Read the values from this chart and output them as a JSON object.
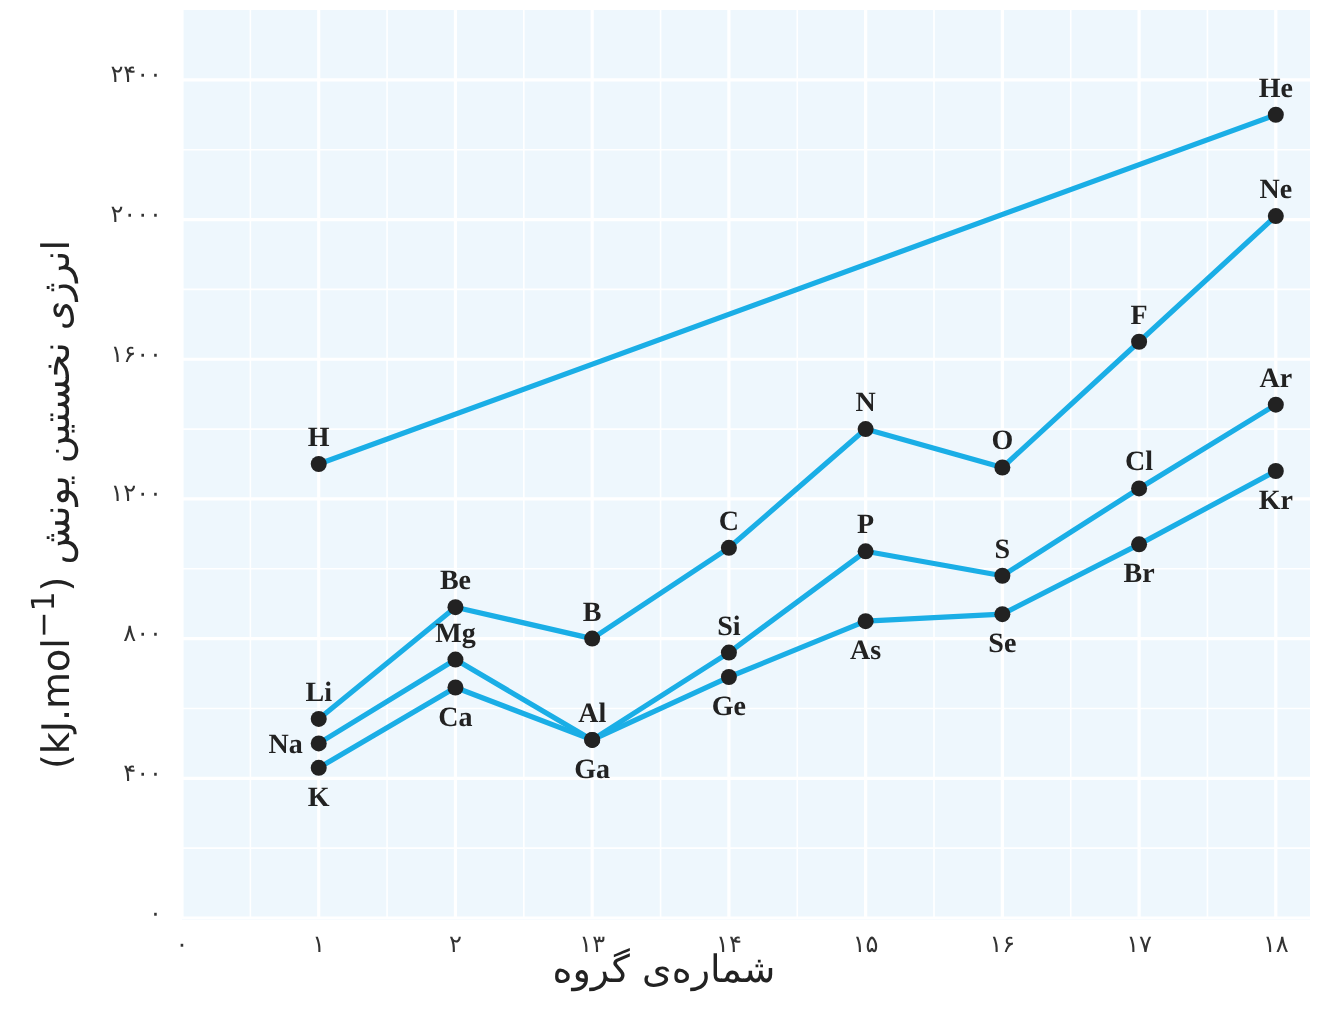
{
  "chart_data": {
    "type": "line",
    "xlabel": "شماره‌ی گروه",
    "ylabel": "انرژی نخستین یونش (kJ.mol$^{−1}$)",
    "categories": [
      "۰",
      "۱",
      "۲",
      "۱۳",
      "۱۴",
      "۱۵",
      "۱۶",
      "۱۷",
      "۱۸"
    ],
    "ylim": [
      0,
      2600
    ],
    "yticks": [
      {
        "value": 0,
        "label": "۰"
      },
      {
        "value": 400,
        "label": "۴۰۰"
      },
      {
        "value": 800,
        "label": "۸۰۰"
      },
      {
        "value": 1200,
        "label": "۱۲۰۰"
      },
      {
        "value": 1600,
        "label": "۱۶۰۰"
      },
      {
        "value": 2000,
        "label": "۲۰۰۰"
      },
      {
        "value": 2400,
        "label": "۲۴۰۰"
      }
    ],
    "grid": true,
    "marker": "circle",
    "line_style": "solid",
    "series": [
      {
        "color": "#1aaee6",
        "values": [
          null,
          1300,
          null,
          null,
          null,
          null,
          null,
          null,
          2300
        ]
      },
      {
        "color": "#1aaee6",
        "values": [
          null,
          570,
          890,
          800,
          1060,
          1400,
          1290,
          1650,
          2010
        ]
      },
      {
        "color": "#1aaee6",
        "values": [
          null,
          500,
          740,
          510,
          760,
          1050,
          980,
          1230,
          1470
        ]
      },
      {
        "color": "#1aaee6",
        "values": [
          null,
          430,
          660,
          510,
          690,
          850,
          870,
          1070,
          1280
        ]
      }
    ],
    "annotations": [
      {
        "text": "H",
        "x": "۱",
        "y": 1300
      },
      {
        "text": "He",
        "x": "۱۸",
        "y": 2300
      },
      {
        "text": "Li",
        "x": "۱",
        "y": 570
      },
      {
        "text": "Be",
        "x": "۲",
        "y": 890
      },
      {
        "text": "B",
        "x": "۱۳",
        "y": 800
      },
      {
        "text": "C",
        "x": "۱۴",
        "y": 1060
      },
      {
        "text": "N",
        "x": "۱۵",
        "y": 1400
      },
      {
        "text": "O",
        "x": "۱۶",
        "y": 1290
      },
      {
        "text": "F",
        "x": "۱۷",
        "y": 1650
      },
      {
        "text": "Ne",
        "x": "۱۸",
        "y": 2010
      },
      {
        "text": "Na",
        "x": "۱",
        "y": 500
      },
      {
        "text": "Mg",
        "x": "۲",
        "y": 740
      },
      {
        "text": "Al",
        "x": "۱۳",
        "y": 510
      },
      {
        "text": "Si",
        "x": "۱۴",
        "y": 760
      },
      {
        "text": "P",
        "x": "۱۵",
        "y": 1050
      },
      {
        "text": "S",
        "x": "۱۶",
        "y": 980
      },
      {
        "text": "Cl",
        "x": "۱۷",
        "y": 1230
      },
      {
        "text": "Ar",
        "x": "۱۸",
        "y": 1470
      },
      {
        "text": "K",
        "x": "۱",
        "y": 430
      },
      {
        "text": "Ca",
        "x": "۲",
        "y": 660
      },
      {
        "text": "Ga",
        "x": "۱۳",
        "y": 510
      },
      {
        "text": "Ge",
        "x": "۱۴",
        "y": 690
      },
      {
        "text": "As",
        "x": "۱۵",
        "y": 850
      },
      {
        "text": "Se",
        "x": "۱۶",
        "y": 870
      },
      {
        "text": "Br",
        "x": "۱۷",
        "y": 1070
      },
      {
        "text": "Kr",
        "x": "۱۸",
        "y": 1280
      }
    ]
  }
}
